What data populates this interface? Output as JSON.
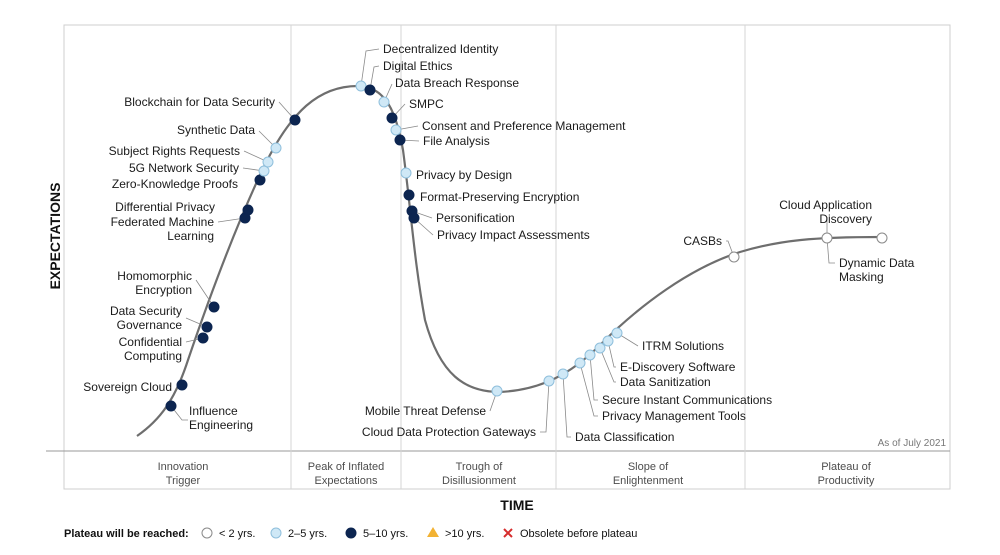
{
  "chart_data": {
    "type": "scatter",
    "y_axis_label": "EXPECTATIONS",
    "x_axis_label": "TIME",
    "note": "As of July 2021",
    "phases": [
      {
        "lines": [
          "Innovation",
          "Trigger"
        ]
      },
      {
        "lines": [
          "Peak of Inflated",
          "Expectations"
        ]
      },
      {
        "lines": [
          "Trough of",
          "Disillusionment"
        ]
      },
      {
        "lines": [
          "Slope of",
          "Enlightenment"
        ]
      },
      {
        "lines": [
          "Plateau of",
          "Productivity"
        ]
      }
    ],
    "legend": {
      "title": "Plateau will be reached:",
      "items": [
        {
          "key": "lt2",
          "label": "< 2 yrs.",
          "color": "#ffffff",
          "shape": "circle"
        },
        {
          "key": "2to5",
          "label": "2–5 yrs.",
          "color": "#cfe8f6",
          "shape": "circle"
        },
        {
          "key": "5to10",
          "label": "5–10 yrs.",
          "color": "#0c2550",
          "shape": "circle"
        },
        {
          "key": "gt10",
          "label": ">10 yrs.",
          "color": "#f2b233",
          "shape": "triangle"
        },
        {
          "key": "obsolete",
          "label": "Obsolete before plateau",
          "color": "#d62d2d",
          "shape": "cross"
        }
      ]
    },
    "points": [
      {
        "label": [
          "Influence",
          "Engineering"
        ],
        "category": "5to10"
      },
      {
        "label": [
          "Sovereign Cloud"
        ],
        "category": "5to10"
      },
      {
        "label": [
          "Confidential",
          "Computing"
        ],
        "category": "5to10"
      },
      {
        "label": [
          "Data Security",
          "Governance"
        ],
        "category": "5to10"
      },
      {
        "label": [
          "Homomorphic",
          "Encryption"
        ],
        "category": "5to10"
      },
      {
        "label": [
          "Federated Machine",
          "Learning"
        ],
        "category": "5to10"
      },
      {
        "label": [
          "Differential Privacy"
        ],
        "category": "5to10"
      },
      {
        "label": [
          "Zero-Knowledge Proofs"
        ],
        "category": "5to10"
      },
      {
        "label": [
          "5G Network Security"
        ],
        "category": "2to5"
      },
      {
        "label": [
          "Subject Rights Requests"
        ],
        "category": "2to5"
      },
      {
        "label": [
          "Synthetic Data"
        ],
        "category": "2to5"
      },
      {
        "label": [
          "Blockchain for Data Security"
        ],
        "category": "5to10"
      },
      {
        "label": [
          "Decentralized Identity"
        ],
        "category": "2to5"
      },
      {
        "label": [
          "Digital Ethics"
        ],
        "category": "5to10"
      },
      {
        "label": [
          "Data Breach Response"
        ],
        "category": "2to5"
      },
      {
        "label": [
          "SMPC"
        ],
        "category": "5to10"
      },
      {
        "label": [
          "Consent and Preference Management"
        ],
        "category": "2to5"
      },
      {
        "label": [
          "File Analysis"
        ],
        "category": "5to10"
      },
      {
        "label": [
          "Privacy by Design"
        ],
        "category": "2to5"
      },
      {
        "label": [
          "Format-Preserving Encryption"
        ],
        "category": "5to10"
      },
      {
        "label": [
          "Personification"
        ],
        "category": "5to10"
      },
      {
        "label": [
          "Privacy Impact Assessments"
        ],
        "category": "5to10"
      },
      {
        "label": [
          "Mobile Threat Defense"
        ],
        "category": "2to5"
      },
      {
        "label": [
          "Cloud Data Protection Gateways"
        ],
        "category": "2to5"
      },
      {
        "label": [
          "Data Classification"
        ],
        "category": "2to5"
      },
      {
        "label": [
          "Privacy Management Tools"
        ],
        "category": "2to5"
      },
      {
        "label": [
          "Secure Instant Communications"
        ],
        "category": "2to5"
      },
      {
        "label": [
          "Data Sanitization"
        ],
        "category": "2to5"
      },
      {
        "label": [
          "E-Discovery Software"
        ],
        "category": "2to5"
      },
      {
        "label": [
          "ITRM Solutions"
        ],
        "category": "2to5"
      },
      {
        "label": [
          "CASBs"
        ],
        "category": "lt2"
      },
      {
        "label": [
          "Cloud Application",
          "Discovery"
        ],
        "category": "lt2"
      },
      {
        "label": [
          "Dynamic Data",
          "Masking"
        ],
        "category": "lt2"
      }
    ]
  }
}
